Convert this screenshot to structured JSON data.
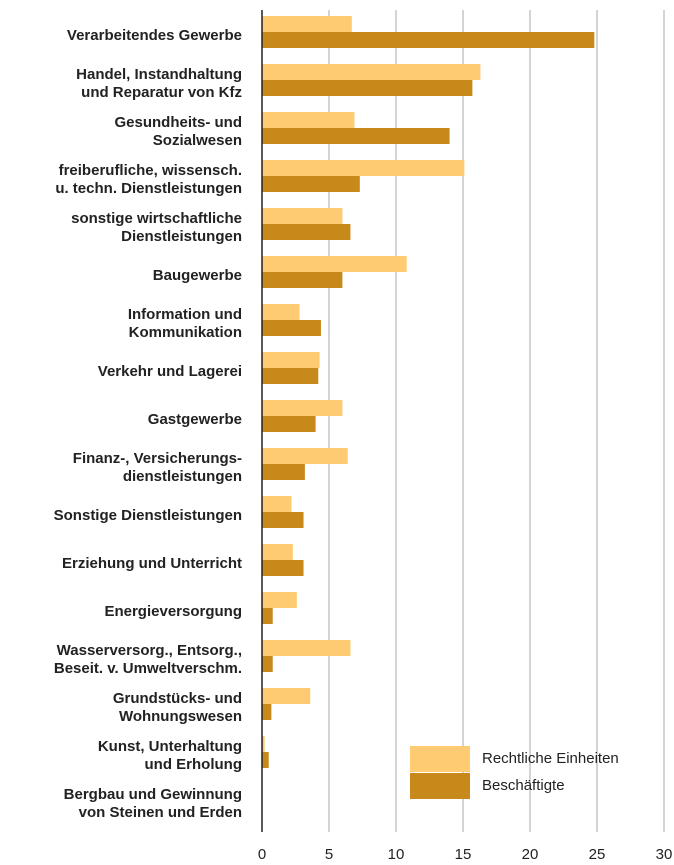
{
  "chart_data": {
    "type": "barh",
    "categories": [
      "Verarbeitendes Gewerbe",
      "Handel, Instandhaltung\nund Reparatur von Kfz",
      "Gesundheits- und\nSozialwesen",
      "freiberufliche, wissensch.\nu. techn. Dienstleistungen",
      "sonstige wirtschaftliche\nDienstleistungen",
      "Baugewerbe",
      "Information und\nKommunikation",
      "Verkehr und Lagerei",
      "Gastgewerbe",
      "Finanz-, Versicherungs-\ndienstleistungen",
      "Sonstige Dienstleistungen",
      "Erziehung und Unterricht",
      "Energieversorgung",
      "Wasserversorg., Entsorg.,\nBeseit. v. Umweltverschm.",
      "Grundstücks- und\nWohnungswesen",
      "Kunst, Unterhaltung\nund Erholung",
      "Bergbau und Gewinnung\nvon Steinen und Erden"
    ],
    "series": [
      {
        "name": "Rechtliche Einheiten",
        "color": "#fecb72",
        "values": [
          6.7,
          16.3,
          6.9,
          15.1,
          6.0,
          10.8,
          2.8,
          4.3,
          6.0,
          6.4,
          2.2,
          2.3,
          2.6,
          6.6,
          3.6,
          0.2,
          0
        ]
      },
      {
        "name": "Beschäftigte",
        "color": "#c8891b",
        "values": [
          24.8,
          15.7,
          14.0,
          7.3,
          6.6,
          6.0,
          4.4,
          4.2,
          4.0,
          3.2,
          3.1,
          3.1,
          0.8,
          0.8,
          0.7,
          0.5,
          0
        ]
      }
    ],
    "xlim": [
      0,
      30
    ],
    "xticks": [
      0,
      5,
      10,
      15,
      20,
      25,
      30
    ],
    "grid": true,
    "legend_position": "lower right"
  }
}
